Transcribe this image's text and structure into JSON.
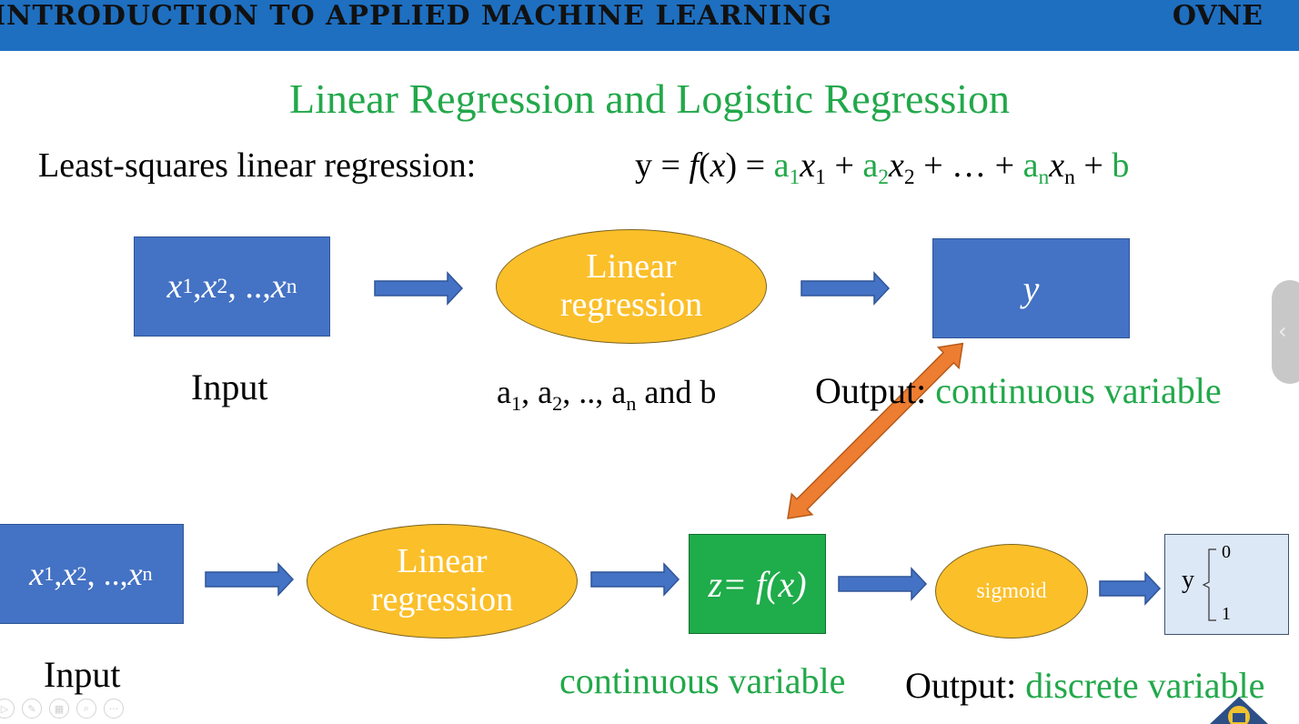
{
  "header": {
    "course_title": "INTRODUCTION TO APPLIED MACHINE LEARNING",
    "brand": "OVNE"
  },
  "slide": {
    "title": "Linear Regression and Logistic Regression",
    "lsq_label": "Least-squares linear regression:",
    "formula": {
      "lhs": "y = ",
      "f": "f",
      "x_paren_open": "(",
      "x": "x",
      "x_paren_close": ") = ",
      "a": "a",
      "sub1": "1",
      "sub2": "2",
      "subn": "n",
      "x_var": "x",
      "plus": " + ",
      "ellipsis": " + … + ",
      "b": "b"
    }
  },
  "top_row": {
    "input_box": {
      "x": "x",
      "s1": "1",
      "comma1": ", ",
      "s2": "2",
      "dots": ", .., ",
      "sn": "n"
    },
    "linreg_line1": "Linear",
    "linreg_line2": "regression",
    "output_box": "y",
    "input_caption": "Input",
    "params_caption": {
      "a": "a",
      "s1": "1",
      "s2": "2",
      "sn": "n",
      "sep": ", ",
      "dots": ", .., ",
      "tail": "  and b"
    },
    "output_caption_prefix": "Output: ",
    "output_caption_value": "continuous variable"
  },
  "bottom_row": {
    "input_box": {
      "x": "x",
      "s1": "1",
      "comma1": ", ",
      "s2": "2",
      "dots": ", .., ",
      "sn": "n"
    },
    "linreg_line1": "Linear",
    "linreg_line2": "regression",
    "z_box": "z= f(x)",
    "sigmoid": "sigmoid",
    "output_y": "y",
    "output_0": "0",
    "output_1": "1",
    "input_caption": "Input",
    "cont_caption": "continuous variable",
    "output_caption_prefix": "Output: ",
    "output_caption_value": "discrete variable"
  },
  "toolbar": {
    "icons": [
      "play-icon",
      "pen-icon",
      "slides-icon",
      "zoom-icon",
      "more-icon"
    ],
    "more_label": "···"
  },
  "colors": {
    "header": "#1e6fc0",
    "green": "#22a84a",
    "blue_box": "#4472c4",
    "ellipse": "#fbbf2a",
    "z_box": "#1fac4a",
    "orange_arrow": "#ed7d31"
  }
}
